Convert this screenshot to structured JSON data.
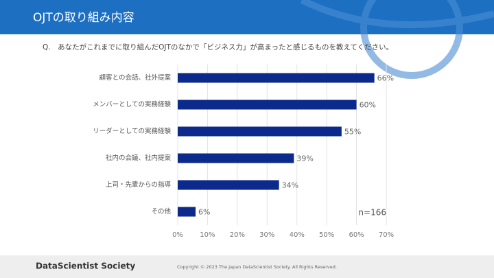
{
  "chart_data": {
    "type": "hbar",
    "title": "OJTの取り組み内容",
    "subtitle": "Q.　あなたがこれまでに取り組んだOJTのなかで「ビジネス力」が高まったと感じるものを教えてください。",
    "categories": [
      "顧客との会話、社外提案",
      "メンバーとしての実務経験",
      "リーダーとしての実務経験",
      "社内の会議、社内提案",
      "上司・先輩からの指導",
      "その他"
    ],
    "values": [
      66,
      60,
      55,
      39,
      34,
      6
    ],
    "value_labels": [
      "66%",
      "60%",
      "55%",
      "39%",
      "34%",
      "6%"
    ],
    "color": "#0b2a8c",
    "xlim": [
      0,
      70
    ],
    "xticks": [
      {
        "value": 0,
        "label": "0%"
      },
      {
        "value": 10,
        "label": "10%"
      },
      {
        "value": 20,
        "label": "20%"
      },
      {
        "value": 30,
        "label": "30%"
      },
      {
        "value": 40,
        "label": "40%"
      },
      {
        "value": 50,
        "label": "50%"
      },
      {
        "value": 60,
        "label": "60%"
      },
      {
        "value": 70,
        "label": "70%"
      }
    ],
    "grid": true,
    "annotation": "n=166"
  },
  "footer": {
    "brand": "DataScientist Society",
    "copyright": "Copyright © 2023  The Japan DataScientist Society. All Rights Reserved."
  }
}
